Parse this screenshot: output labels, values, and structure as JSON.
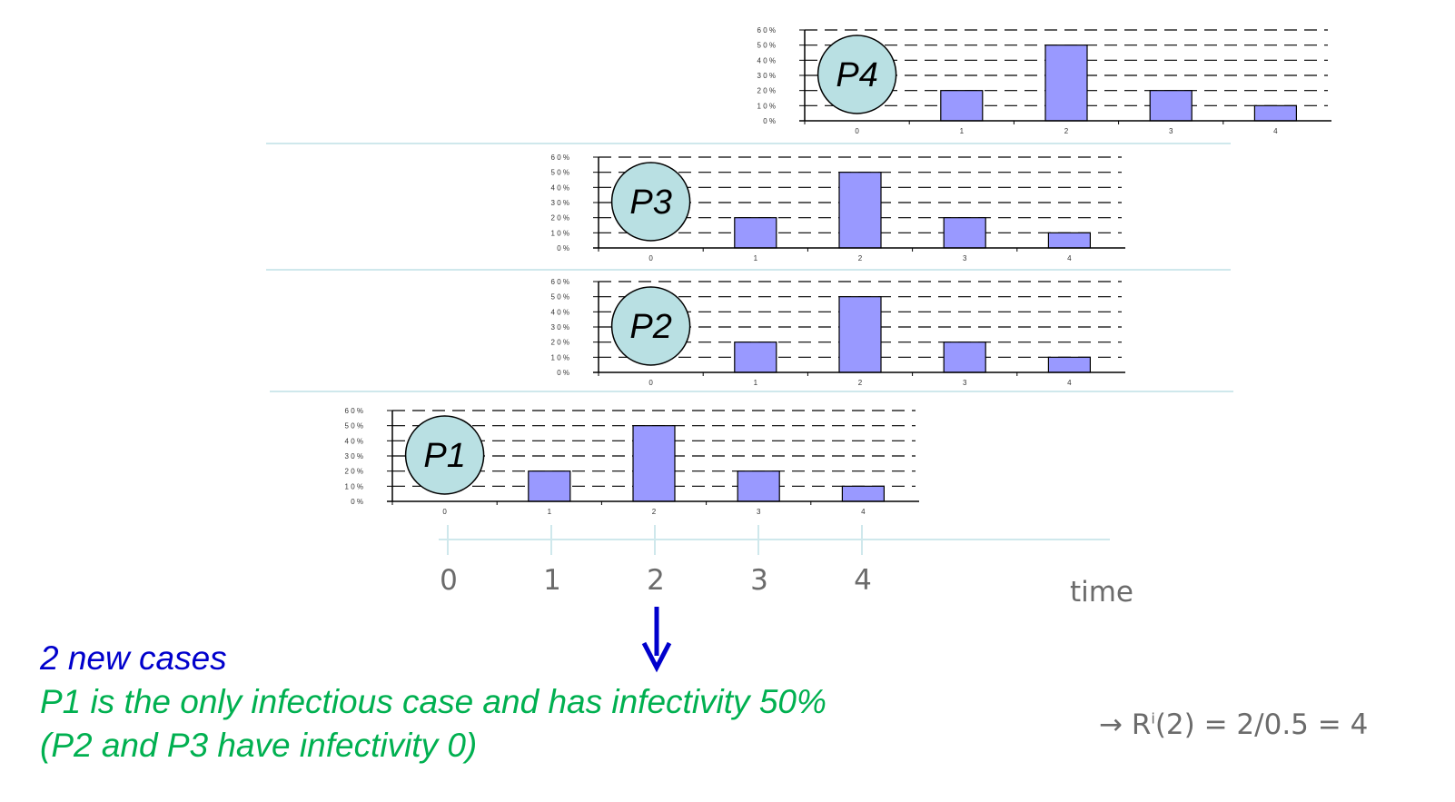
{
  "chart_data": [
    {
      "type": "bar",
      "label": "P4",
      "categories": [
        "0",
        "1",
        "2",
        "3",
        "4"
      ],
      "values": [
        0,
        20,
        50,
        20,
        10
      ],
      "ylim": [
        0,
        60
      ],
      "yticks": [
        "0 %",
        "1 0 %",
        "2 0 %",
        "3 0 %",
        "4 0 %",
        "5 0 %",
        "6 0 %"
      ],
      "grid": "dashed",
      "bar_color": "#9999ff"
    },
    {
      "type": "bar",
      "label": "P3",
      "categories": [
        "0",
        "1",
        "2",
        "3",
        "4"
      ],
      "values": [
        0,
        20,
        50,
        20,
        10
      ],
      "ylim": [
        0,
        60
      ],
      "yticks": [
        "0 %",
        "1 0 %",
        "2 0 %",
        "3 0 %",
        "4 0 %",
        "5 0 %",
        "6 0 %"
      ],
      "grid": "dashed",
      "bar_color": "#9999ff"
    },
    {
      "type": "bar",
      "label": "P2",
      "categories": [
        "0",
        "1",
        "2",
        "3",
        "4"
      ],
      "values": [
        0,
        20,
        50,
        20,
        10
      ],
      "ylim": [
        0,
        60
      ],
      "yticks": [
        "0 %",
        "1 0 %",
        "2 0 %",
        "3 0 %",
        "4 0 %",
        "5 0 %",
        "6 0 %"
      ],
      "grid": "dashed",
      "bar_color": "#9999ff"
    },
    {
      "type": "bar",
      "label": "P1",
      "categories": [
        "0",
        "1",
        "2",
        "3",
        "4"
      ],
      "values": [
        0,
        20,
        50,
        20,
        10
      ],
      "ylim": [
        0,
        60
      ],
      "yticks": [
        "0 %",
        "1 0 %",
        "2 0 %",
        "3 0 %",
        "4 0 %",
        "5 0 %",
        "6 0 %"
      ],
      "grid": "dashed",
      "bar_color": "#9999ff"
    }
  ],
  "timeline": {
    "ticks": [
      "0",
      "1",
      "2",
      "3",
      "4"
    ],
    "label": "time"
  },
  "text": {
    "new_cases": "2 new cases",
    "line1": "P1 is the only infectious case and has infectivity 50%",
    "line2": "(P2 and P3 have infectivity 0)",
    "formula_prefix": "→ R",
    "formula_sup": "i",
    "formula_rest": "(2) = 2/0.5 = 4"
  },
  "colors": {
    "blue": "#0000cc",
    "green": "#00b050",
    "circle": "#b9e0e3",
    "separator": "#cfe8ec"
  }
}
